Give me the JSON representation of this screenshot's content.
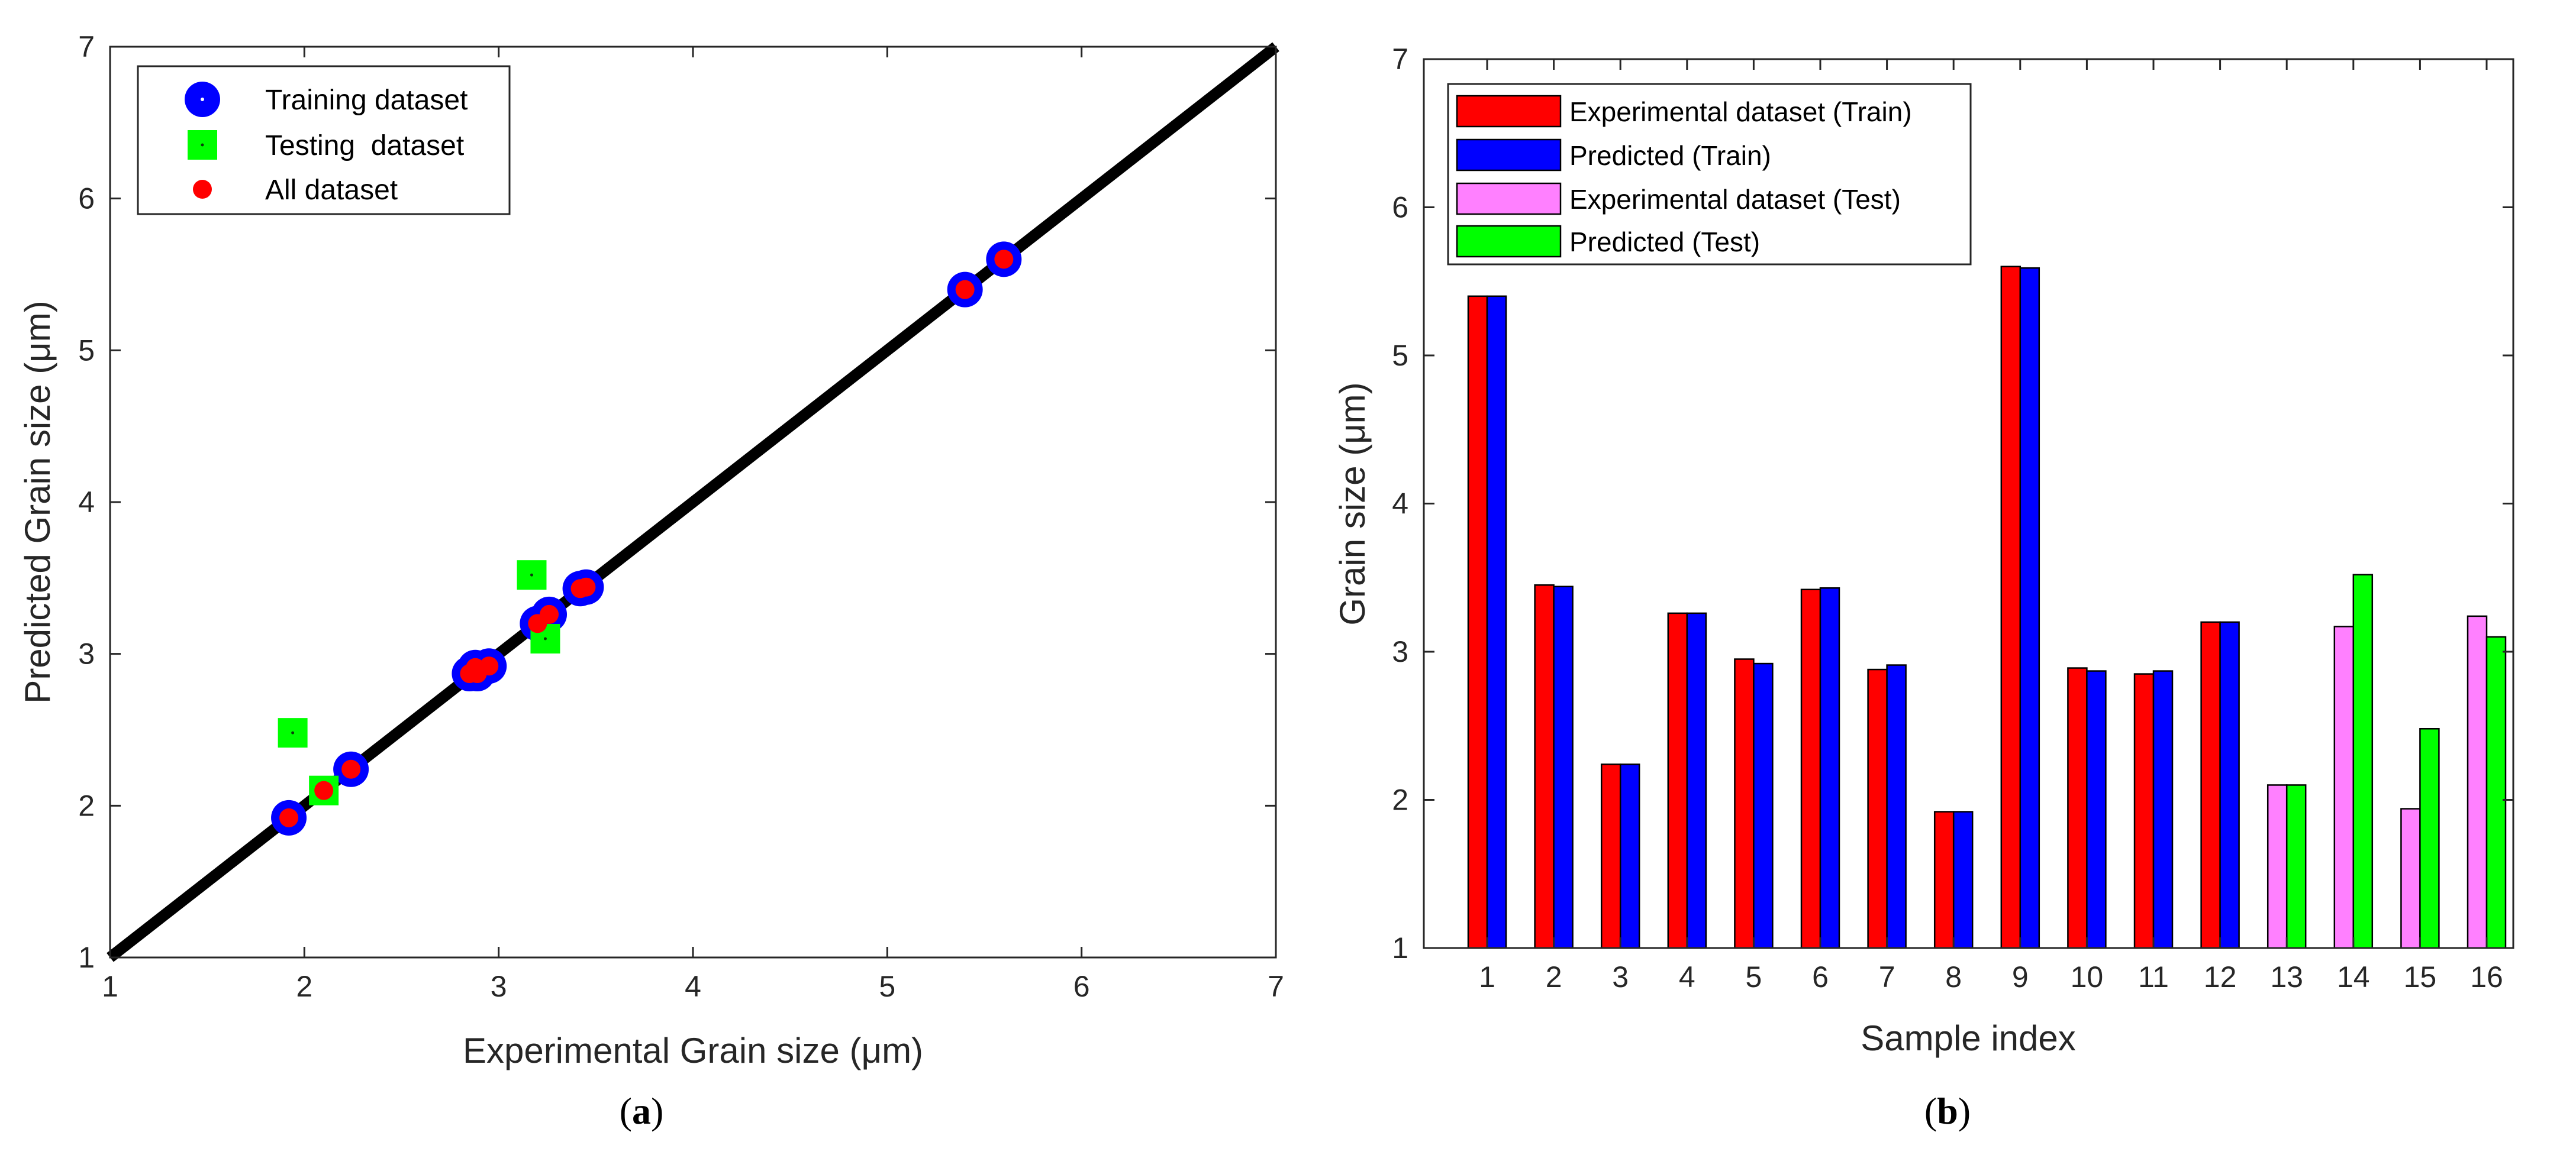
{
  "chart_data": [
    {
      "type": "scatter",
      "panel_caption": {
        "open": "(",
        "letter": "a",
        "close": ")"
      },
      "xlabel": "Experimental Grain size (μm)",
      "ylabel": "Predicted Grain size (μm)",
      "xlim": [
        1,
        7
      ],
      "ylim": [
        1,
        7
      ],
      "xticks": [
        "1",
        "2",
        "3",
        "4",
        "5",
        "6",
        "7"
      ],
      "yticks": [
        "1",
        "2",
        "3",
        "4",
        "5",
        "6",
        "7"
      ],
      "legend_position": "top-left",
      "reference_line": {
        "from": [
          1,
          1
        ],
        "to": [
          7,
          7
        ],
        "color": "#000000"
      },
      "series": [
        {
          "name": "Training dataset",
          "marker": "circle",
          "color": "#0000ff",
          "points": [
            [
              5.4,
              5.4
            ],
            [
              5.6,
              5.6
            ],
            [
              3.45,
              3.44
            ],
            [
              3.42,
              3.43
            ],
            [
              3.26,
              3.26
            ],
            [
              3.2,
              3.2
            ],
            [
              2.95,
              2.92
            ],
            [
              2.89,
              2.87
            ],
            [
              2.88,
              2.91
            ],
            [
              2.85,
              2.87
            ],
            [
              2.24,
              2.24
            ],
            [
              1.92,
              1.92
            ]
          ]
        },
        {
          "name": "Testing  dataset",
          "marker": "square",
          "color": "#00ff00",
          "points": [
            [
              1.94,
              2.48
            ],
            [
              2.1,
              2.1
            ],
            [
              3.17,
              3.52
            ],
            [
              3.24,
              3.1
            ]
          ]
        },
        {
          "name": "All dataset",
          "marker": "dot",
          "color": "#ff0000",
          "points": [
            [
              5.4,
              5.4
            ],
            [
              5.6,
              5.6
            ],
            [
              3.45,
              3.44
            ],
            [
              3.42,
              3.43
            ],
            [
              3.26,
              3.26
            ],
            [
              3.2,
              3.2
            ],
            [
              2.95,
              2.92
            ],
            [
              2.89,
              2.87
            ],
            [
              2.88,
              2.91
            ],
            [
              2.85,
              2.87
            ],
            [
              2.24,
              2.24
            ],
            [
              1.92,
              1.92
            ],
            [
              2.1,
              2.1
            ]
          ]
        }
      ]
    },
    {
      "type": "bar",
      "panel_caption": {
        "open": "(",
        "letter": "b",
        "close": ")"
      },
      "xlabel": "Sample index",
      "ylabel": "Grain size (μm)",
      "ylim": [
        1,
        7
      ],
      "yticks": [
        "1",
        "2",
        "3",
        "4",
        "5",
        "6",
        "7"
      ],
      "categories": [
        "1",
        "2",
        "3",
        "4",
        "5",
        "6",
        "7",
        "8",
        "9",
        "10",
        "11",
        "12",
        "13",
        "14",
        "15",
        "16"
      ],
      "legend_position": "top-left",
      "series": [
        {
          "name": "Experimental dataset (Train)",
          "color": "#ff0000",
          "group": "first",
          "values": [
            5.4,
            3.45,
            2.24,
            3.26,
            2.95,
            3.42,
            2.88,
            1.92,
            5.6,
            2.89,
            2.85,
            3.2,
            null,
            null,
            null,
            null
          ]
        },
        {
          "name": "Predicted (Train)",
          "color": "#0000ff",
          "group": "second",
          "values": [
            5.4,
            3.44,
            2.24,
            3.26,
            2.92,
            3.43,
            2.91,
            1.92,
            5.59,
            2.87,
            2.87,
            3.2,
            null,
            null,
            null,
            null
          ]
        },
        {
          "name": "Experimental dataset (Test)",
          "color": "#ff80ff",
          "group": "first",
          "values": [
            null,
            null,
            null,
            null,
            null,
            null,
            null,
            null,
            null,
            null,
            null,
            null,
            2.1,
            3.17,
            1.94,
            3.24
          ]
        },
        {
          "name": "Predicted (Test)",
          "color": "#00ff00",
          "group": "second",
          "values": [
            null,
            null,
            null,
            null,
            null,
            null,
            null,
            null,
            null,
            null,
            null,
            null,
            2.1,
            3.52,
            2.48,
            3.1
          ]
        }
      ]
    }
  ]
}
